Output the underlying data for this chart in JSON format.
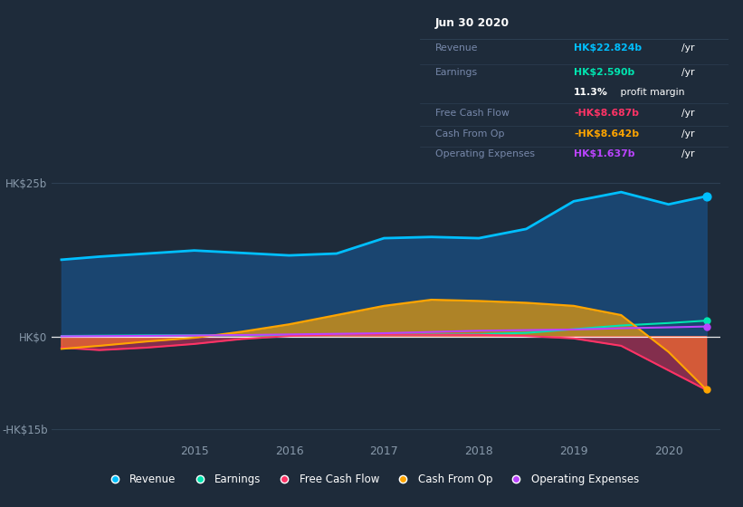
{
  "background_color": "#1e2b3a",
  "plot_bg_color": "#1e2b3a",
  "years": [
    2013.6,
    2014.0,
    2014.5,
    2015.0,
    2015.5,
    2016.0,
    2016.5,
    2017.0,
    2017.5,
    2018.0,
    2018.5,
    2019.0,
    2019.5,
    2020.0,
    2020.4
  ],
  "revenue": [
    12.5,
    13.0,
    13.5,
    14.0,
    13.6,
    13.2,
    13.5,
    16.0,
    16.2,
    16.0,
    17.5,
    22.0,
    23.5,
    21.5,
    22.824
  ],
  "earnings": [
    0.1,
    0.15,
    0.2,
    0.2,
    0.2,
    0.2,
    0.25,
    0.3,
    0.35,
    0.4,
    0.6,
    1.2,
    1.8,
    2.2,
    2.59
  ],
  "free_cash_flow": [
    -1.8,
    -2.2,
    -1.8,
    -1.2,
    -0.4,
    0.1,
    0.3,
    0.3,
    0.3,
    0.3,
    0.1,
    -0.3,
    -1.5,
    -5.5,
    -8.687
  ],
  "cash_from_op": [
    -2.0,
    -1.5,
    -0.8,
    -0.2,
    0.8,
    2.0,
    3.5,
    5.0,
    6.0,
    5.8,
    5.5,
    5.0,
    3.5,
    -2.5,
    -8.642
  ],
  "operating_expenses": [
    0.05,
    0.08,
    0.12,
    0.18,
    0.25,
    0.35,
    0.45,
    0.55,
    0.75,
    0.95,
    1.05,
    1.15,
    1.35,
    1.5,
    1.637
  ],
  "revenue_color": "#00bfff",
  "earnings_color": "#00e5b0",
  "fcf_color": "#ff3366",
  "cfo_color": "#ffa500",
  "opex_color": "#bb44ff",
  "revenue_fill": "#1a4a6e",
  "legend_items": [
    {
      "label": "Revenue",
      "color": "#00bfff"
    },
    {
      "label": "Earnings",
      "color": "#00e5b0"
    },
    {
      "label": "Free Cash Flow",
      "color": "#ff3366"
    },
    {
      "label": "Cash From Op",
      "color": "#ffa500"
    },
    {
      "label": "Operating Expenses",
      "color": "#bb44ff"
    }
  ]
}
